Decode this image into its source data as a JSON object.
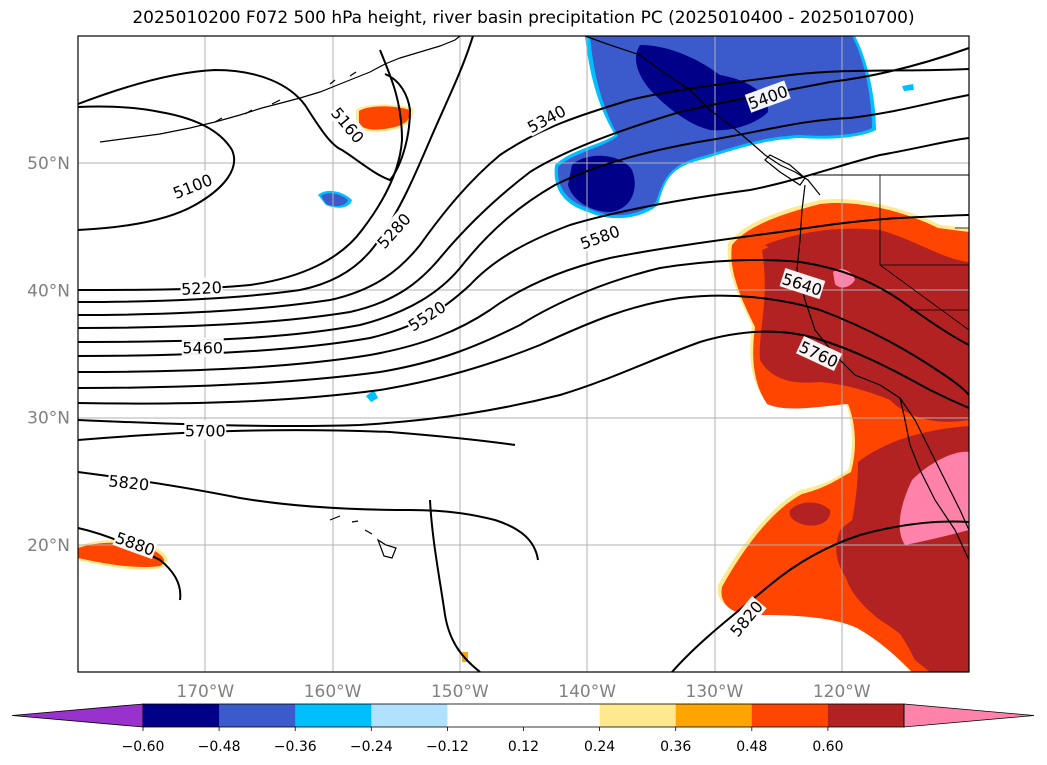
{
  "title": "2025010200 F072 500 hPa height, river basin precipitation PC (2025010400 - 2025010700)",
  "map": {
    "lon_range": [
      -180,
      -110
    ],
    "lat_range": [
      10,
      60
    ],
    "lon_ticks": [
      {
        "lon": -170,
        "label": "170°W"
      },
      {
        "lon": -160,
        "label": "160°W"
      },
      {
        "lon": -150,
        "label": "150°W"
      },
      {
        "lon": -140,
        "label": "140°W"
      },
      {
        "lon": -130,
        "label": "130°W"
      },
      {
        "lon": -120,
        "label": "120°W"
      }
    ],
    "lat_ticks": [
      {
        "lat": 50,
        "label": "50°N"
      },
      {
        "lat": 40,
        "label": "40°N"
      },
      {
        "lat": 30,
        "label": "30°N"
      },
      {
        "lat": 20,
        "label": "20°N"
      }
    ],
    "grid": true,
    "contour_labels": [
      {
        "text": "5100",
        "lon": -171,
        "lat": 48.2,
        "angle": -22
      },
      {
        "text": "5160",
        "lon": -158.8,
        "lat": 53.0,
        "angle": 50
      },
      {
        "text": "5220",
        "lon": -170.3,
        "lat": 40.2,
        "angle": -3
      },
      {
        "text": "5280",
        "lon": -155.2,
        "lat": 44.7,
        "angle": -48
      },
      {
        "text": "5340",
        "lon": -143.2,
        "lat": 53.5,
        "angle": -28
      },
      {
        "text": "5400",
        "lon": -125.8,
        "lat": 55.2,
        "angle": -20
      },
      {
        "text": "5460",
        "lon": -170.2,
        "lat": 35.5,
        "angle": 0
      },
      {
        "text": "5520",
        "lon": -152.6,
        "lat": 38.0,
        "angle": -33
      },
      {
        "text": "5580",
        "lon": -139,
        "lat": 44.2,
        "angle": -20
      },
      {
        "text": "5640",
        "lon": -123.1,
        "lat": 40.5,
        "angle": 18
      },
      {
        "text": "5700",
        "lon": -170,
        "lat": 29.0,
        "angle": 0
      },
      {
        "text": "5760",
        "lon": -121.8,
        "lat": 35.0,
        "angle": 25
      },
      {
        "text": "5820",
        "lon": -176,
        "lat": 24.9,
        "angle": 6
      },
      {
        "text": "5820",
        "lon": -127.5,
        "lat": 14.2,
        "angle": -50
      },
      {
        "text": "5880",
        "lon": -175.5,
        "lat": 20.1,
        "angle": 20
      }
    ]
  },
  "colorbar": {
    "under_color": "#9932cc",
    "over_color": "#ff82ab",
    "colors": [
      "#000089",
      "#3b5bcc",
      "#00bfff",
      "#b0e2ff",
      "#ffffff",
      "#ffffff",
      "#ffe98f",
      "#ffa500",
      "#ff4500",
      "#b22222"
    ],
    "tick_labels": [
      "−0.60",
      "−0.48",
      "−0.36",
      "−0.24",
      "−0.12",
      "0.12",
      "0.24",
      "0.36",
      "0.48",
      "0.60"
    ]
  }
}
